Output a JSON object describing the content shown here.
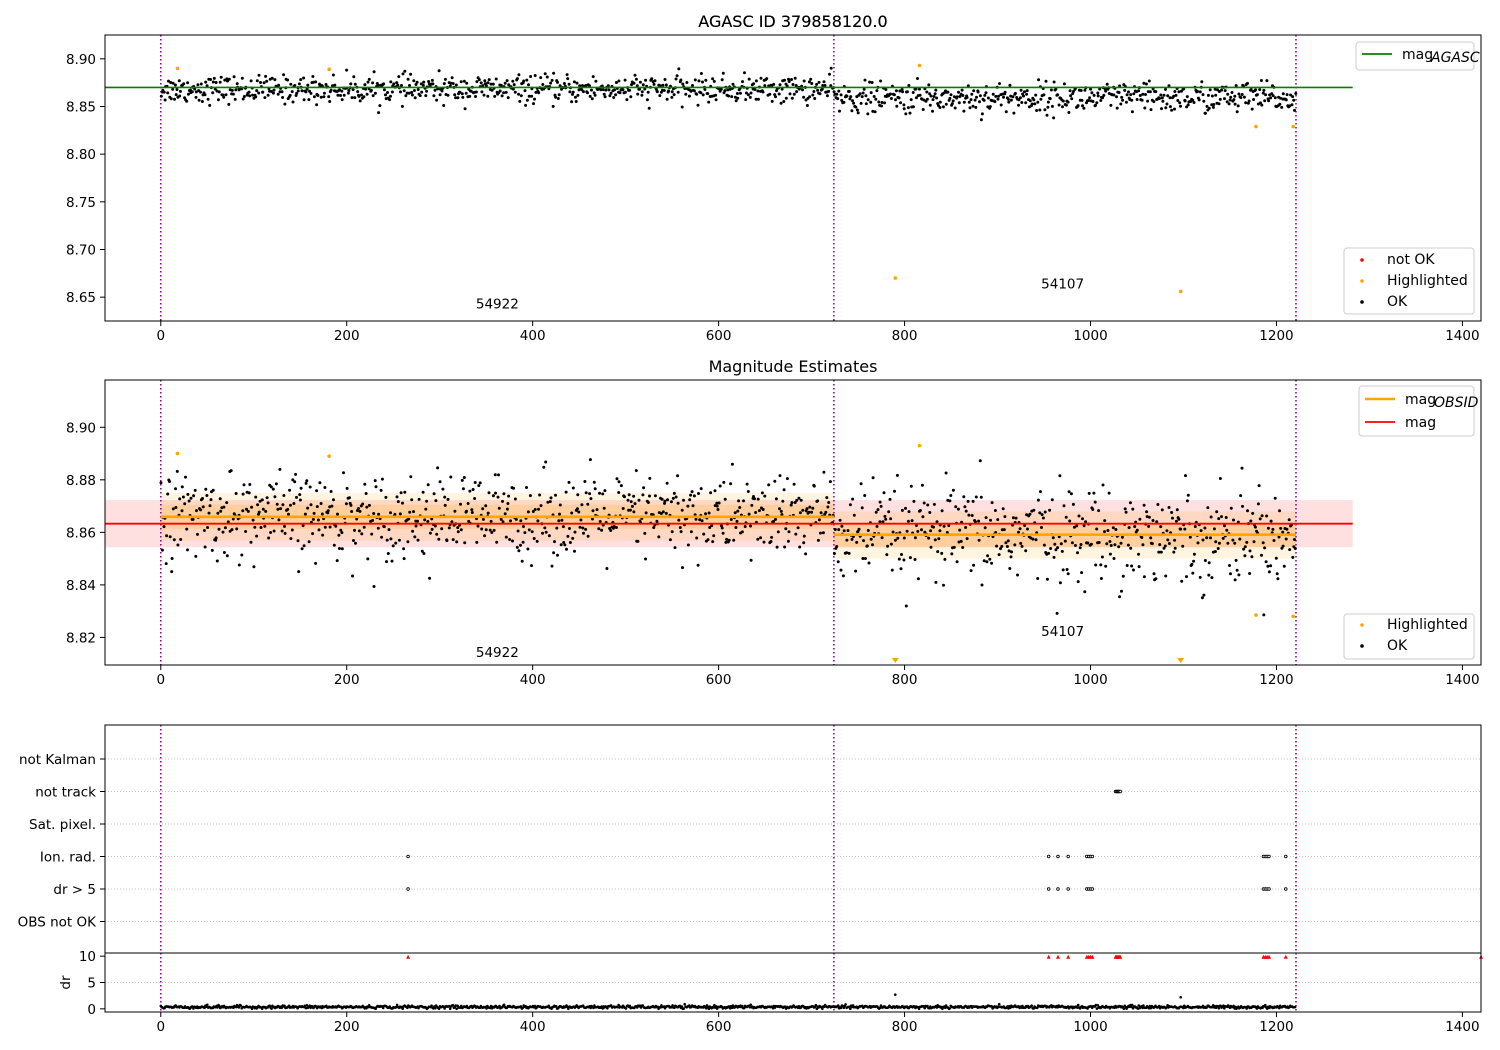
{
  "figure": {
    "title": "AGASC ID 379858120.0"
  },
  "chart_data": [
    {
      "id": "agasc",
      "type": "scatter",
      "title": "AGASC ID 379858120.0",
      "xlim": [
        -60,
        1420
      ],
      "ylim": [
        8.625,
        8.925
      ],
      "xticks": [
        0,
        200,
        400,
        600,
        800,
        1000,
        1200,
        1400
      ],
      "yticks": [
        8.65,
        8.7,
        8.75,
        8.8,
        8.85,
        8.9
      ],
      "ytick_labels": [
        "8.65",
        "8.70",
        "8.75",
        "8.80",
        "8.85",
        "8.90"
      ],
      "obsid_boundaries": [
        0,
        724,
        1221
      ],
      "obsid_labels": [
        {
          "text": "54922",
          "x": 362,
          "y": 8.638
        },
        {
          "text": "54107",
          "x": 970,
          "y": 8.659
        }
      ],
      "reference_lines": [
        {
          "name": "mag",
          "sub": "AGASC",
          "color": "#008000",
          "value": 8.87,
          "x_range": [
            -60,
            1282
          ]
        }
      ],
      "ok": {
        "name": "OK",
        "color": "#000000",
        "segments": [
          {
            "x": [
              0,
              724
            ],
            "center": 8.868,
            "spread": 0.007,
            "n": 720
          },
          {
            "x": [
              724,
              1221
            ],
            "center": 8.859,
            "spread": 0.008,
            "n": 500
          }
        ]
      },
      "highlighted": {
        "name": "Highlighted",
        "color": "#ffa500",
        "points": [
          [
            18,
            8.89
          ],
          [
            181,
            8.889
          ],
          [
            816,
            8.893
          ],
          [
            790,
            8.67
          ],
          [
            1097,
            8.656
          ],
          [
            1178,
            8.829
          ],
          [
            1218,
            8.829
          ]
        ]
      },
      "not_ok": {
        "name": "not OK",
        "color": "#ff0000",
        "points": []
      },
      "legend_top": [
        {
          "label": "mag",
          "sub": "AGASC",
          "color": "#008000"
        }
      ],
      "legend_bottom": [
        {
          "label": "not OK",
          "color": "#ff0000"
        },
        {
          "label": "Highlighted",
          "color": "#ffa500"
        },
        {
          "label": "OK",
          "color": "#000000"
        }
      ]
    },
    {
      "id": "estimates",
      "type": "scatter",
      "title": "Magnitude Estimates",
      "xlim": [
        -60,
        1420
      ],
      "ylim": [
        8.8095,
        8.918
      ],
      "xticks": [
        0,
        200,
        400,
        600,
        800,
        1000,
        1200,
        1400
      ],
      "yticks": [
        8.82,
        8.84,
        8.86,
        8.88,
        8.9
      ],
      "ytick_labels": [
        "8.82",
        "8.84",
        "8.86",
        "8.88",
        "8.90"
      ],
      "obsid_boundaries": [
        0,
        724,
        1221
      ],
      "obsid_labels": [
        {
          "text": "54922",
          "x": 362,
          "y": 8.8125
        },
        {
          "text": "54107",
          "x": 970,
          "y": 8.8205
        }
      ],
      "bands": [
        {
          "color": "#ff0000",
          "opacity": 0.12,
          "y_range": [
            8.8543,
            8.8723
          ],
          "x_range": [
            -60,
            1282
          ]
        },
        {
          "color": "#ffa500",
          "opacity": 0.12,
          "y_range": [
            8.8568,
            8.875
          ],
          "x_range": [
            0,
            724
          ]
        },
        {
          "color": "#ffa500",
          "opacity": 0.18,
          "y_range": [
            8.8613,
            8.8705
          ],
          "x_range": [
            0,
            724
          ]
        },
        {
          "color": "#ffa500",
          "opacity": 0.12,
          "y_range": [
            8.85,
            8.868
          ],
          "x_range": [
            724,
            1221
          ]
        },
        {
          "color": "#ffa500",
          "opacity": 0.18,
          "y_range": [
            8.8545,
            8.8635
          ],
          "x_range": [
            724,
            1221
          ]
        }
      ],
      "reference_lines": [
        {
          "name": "mag",
          "color": "#ff0000",
          "value": 8.8633,
          "x_range": [
            -60,
            1282
          ]
        },
        {
          "name": "mag",
          "sub": "OBSID",
          "color": "#ffa500",
          "value": 8.8659,
          "x_range": [
            0,
            724
          ]
        },
        {
          "name": "mag",
          "sub": "OBSID",
          "color": "#ffa500",
          "value": 8.8591,
          "x_range": [
            724,
            1221
          ]
        }
      ],
      "ok": {
        "name": "OK",
        "color": "#000000",
        "segments": [
          {
            "x": [
              0,
              724
            ],
            "center": 8.866,
            "spread": 0.008,
            "n": 720
          },
          {
            "x": [
              724,
              1221
            ],
            "center": 8.859,
            "spread": 0.009,
            "n": 500
          }
        ]
      },
      "highlighted": {
        "name": "Highlighted",
        "color": "#ffa500",
        "points": [
          [
            18,
            8.89
          ],
          [
            181,
            8.889
          ],
          [
            816,
            8.893
          ],
          [
            1178,
            8.8285
          ],
          [
            1218,
            8.828
          ]
        ]
      },
      "offscale_markers": [
        {
          "x": 790,
          "color": "#ffa500"
        },
        {
          "x": 1097,
          "color": "#ffa500"
        }
      ],
      "legend_top": [
        {
          "label": "mag",
          "sub": "OBSID",
          "color": "#ffa500"
        },
        {
          "label": "mag",
          "color": "#ff0000"
        }
      ],
      "legend_bottom": [
        {
          "label": "Highlighted",
          "color": "#ffa500"
        },
        {
          "label": "OK",
          "color": "#000000"
        }
      ]
    },
    {
      "id": "flags",
      "type": "scatter",
      "xlim": [
        -60,
        1420
      ],
      "categories": [
        "not Kalman",
        "not track",
        "Sat. pixel.",
        "Ion. rad.",
        "dr > 5",
        "OBS not OK"
      ],
      "obsid_boundaries": [
        0,
        724,
        1221
      ],
      "flag_points": {
        "not track": [
          1027,
          1028,
          1029,
          1030,
          1031,
          1032
        ],
        "Ion. rad.": [
          266,
          955,
          965,
          976,
          996,
          998,
          1000,
          1002,
          1186,
          1188,
          1190,
          1192,
          1210
        ],
        "dr > 5": [
          266,
          955,
          965,
          976,
          996,
          998,
          1000,
          1002,
          1186,
          1188,
          1190,
          1192,
          1210
        ]
      }
    },
    {
      "id": "dr",
      "type": "scatter",
      "xlim": [
        -60,
        1420
      ],
      "ylim": [
        -0.6,
        10.6
      ],
      "ylabel": "dr",
      "xticks": [
        0,
        200,
        400,
        600,
        800,
        1000,
        1200,
        1400
      ],
      "yticks": [
        0,
        5,
        10
      ],
      "ytick_labels": [
        "0",
        "5",
        "10"
      ],
      "obsid_boundaries": [
        0,
        724,
        1221
      ],
      "baseline": {
        "x": [
          0,
          1221
        ],
        "center": 0.35,
        "spread": 0.15,
        "n": 1220
      },
      "outliers": [
        [
          790,
          2.7
        ],
        [
          1097,
          2.2
        ]
      ],
      "clipped_points": {
        "color": "#ff0000",
        "y": 9.9,
        "x": [
          266,
          955,
          965,
          976,
          996,
          998,
          1000,
          1002,
          1027,
          1028,
          1029,
          1030,
          1031,
          1032,
          1186,
          1188,
          1190,
          1192,
          1210,
          1420
        ]
      }
    }
  ]
}
